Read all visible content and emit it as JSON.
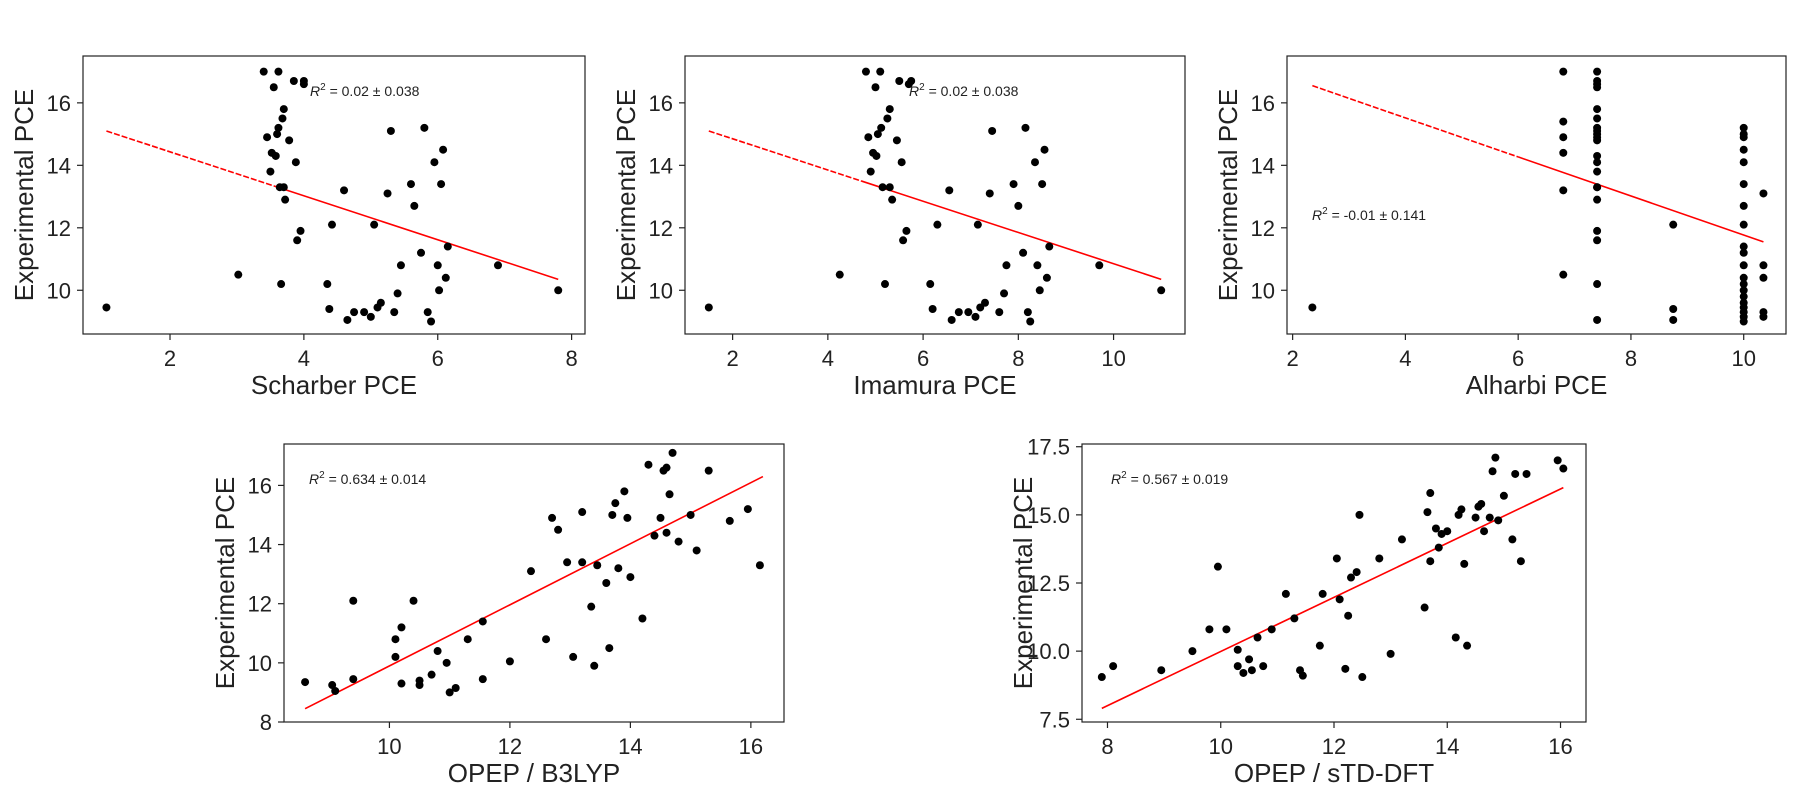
{
  "colors": {
    "points": "#000000",
    "fit": "#ff0000",
    "axes": "#222222"
  },
  "chart_data": [
    {
      "type": "scatter",
      "xlabel": "Scharber PCE",
      "ylabel": "Experimental PCE",
      "annotation": {
        "r2_label": "R",
        "r2_sup": "2",
        "r2_value": " = 0.02 ± 0.038"
      },
      "xlim": [
        0.7,
        8.2
      ],
      "ylim": [
        8.6,
        17.5
      ],
      "xticks": [
        2,
        4,
        6,
        8
      ],
      "yticks": [
        10,
        12,
        14,
        16
      ],
      "fit": {
        "x": [
          1.05,
          7.8
        ],
        "y": [
          15.1,
          10.35
        ],
        "dashed_until_x": 3.6
      },
      "x": [
        1.05,
        3.02,
        3.4,
        3.45,
        3.5,
        3.52,
        3.55,
        3.58,
        3.6,
        3.62,
        3.62,
        3.64,
        3.66,
        3.68,
        3.7,
        3.7,
        3.72,
        3.78,
        3.85,
        3.88,
        3.9,
        3.95,
        4.0,
        4.0,
        4.35,
        4.38,
        4.42,
        4.6,
        4.65,
        4.75,
        4.9,
        5.0,
        5.05,
        5.1,
        5.15,
        5.25,
        5.3,
        5.35,
        5.4,
        5.45,
        5.6,
        5.65,
        5.75,
        5.8,
        5.85,
        5.9,
        5.95,
        6.0,
        6.02,
        6.05,
        6.08,
        6.12,
        6.15,
        6.9,
        7.8
      ],
      "y": [
        9.45,
        10.5,
        17.0,
        14.9,
        13.8,
        14.4,
        16.5,
        14.3,
        15.0,
        17.0,
        15.2,
        13.3,
        10.2,
        15.5,
        15.8,
        13.3,
        12.9,
        14.8,
        16.7,
        14.1,
        11.6,
        11.9,
        16.6,
        16.7,
        10.2,
        9.4,
        12.1,
        13.2,
        9.05,
        9.3,
        9.3,
        9.15,
        12.1,
        9.45,
        9.6,
        13.1,
        15.1,
        9.3,
        9.9,
        10.8,
        13.4,
        12.7,
        11.2,
        15.2,
        9.3,
        9.0,
        14.1,
        10.8,
        10.0,
        13.4,
        14.5,
        10.4,
        11.4,
        10.8,
        10.0
      ]
    },
    {
      "type": "scatter",
      "xlabel": "Imamura PCE",
      "ylabel": "Experimental PCE",
      "annotation": {
        "r2_label": "R",
        "r2_sup": "2",
        "r2_value": " = 0.02 ± 0.038"
      },
      "xlim": [
        1.0,
        11.5
      ],
      "ylim": [
        8.6,
        17.5
      ],
      "xticks": [
        2,
        4,
        6,
        8,
        10
      ],
      "yticks": [
        10,
        12,
        14,
        16
      ],
      "fit": {
        "x": [
          1.5,
          11.0
        ],
        "y": [
          15.1,
          10.35
        ],
        "dashed_until_x": 4.7
      },
      "x": [
        1.5,
        4.25,
        4.8,
        4.85,
        4.9,
        4.95,
        5.0,
        5.02,
        5.05,
        5.1,
        5.12,
        5.15,
        5.2,
        5.25,
        5.3,
        5.3,
        5.35,
        5.45,
        5.5,
        5.55,
        5.58,
        5.65,
        5.7,
        5.75,
        6.15,
        6.2,
        6.3,
        6.55,
        6.6,
        6.75,
        6.95,
        7.1,
        7.15,
        7.2,
        7.3,
        7.4,
        7.45,
        7.6,
        7.7,
        7.75,
        7.9,
        8.0,
        8.1,
        8.15,
        8.2,
        8.25,
        8.35,
        8.4,
        8.45,
        8.5,
        8.55,
        8.6,
        8.65,
        9.7,
        11.0
      ],
      "y": [
        9.45,
        10.5,
        17.0,
        14.9,
        13.8,
        14.4,
        16.5,
        14.3,
        15.0,
        17.0,
        15.2,
        13.3,
        10.2,
        15.5,
        15.8,
        13.3,
        12.9,
        14.8,
        16.7,
        14.1,
        11.6,
        11.9,
        16.6,
        16.7,
        10.2,
        9.4,
        12.1,
        13.2,
        9.05,
        9.3,
        9.3,
        9.15,
        12.1,
        9.45,
        9.6,
        13.1,
        15.1,
        9.3,
        9.9,
        10.8,
        13.4,
        12.7,
        11.2,
        15.2,
        9.3,
        9.0,
        14.1,
        10.8,
        10.0,
        13.4,
        14.5,
        10.4,
        11.4,
        10.8,
        10.0
      ]
    },
    {
      "type": "scatter",
      "xlabel": "Alharbi PCE",
      "ylabel": "Experimental PCE",
      "annotation": {
        "r2_label": "R",
        "r2_sup": "2",
        "r2_value": " = -0.01 ± 0.141"
      },
      "xlim": [
        1.9,
        10.75
      ],
      "ylim": [
        8.6,
        17.5
      ],
      "xticks": [
        2,
        4,
        6,
        8,
        10
      ],
      "yticks": [
        10,
        12,
        14,
        16
      ],
      "fit": {
        "x": [
          2.35,
          10.35
        ],
        "y": [
          16.55,
          11.55
        ],
        "dashed_until_x": 6.0
      },
      "x": [
        2.35,
        6.8,
        6.8,
        6.8,
        6.8,
        6.8,
        6.8,
        7.4,
        7.4,
        7.4,
        7.4,
        7.4,
        7.4,
        7.4,
        7.4,
        7.4,
        7.4,
        7.4,
        7.4,
        7.4,
        7.4,
        7.4,
        7.4,
        7.4,
        7.4,
        7.4,
        7.4,
        7.4,
        8.75,
        8.75,
        8.75,
        10.0,
        10.0,
        10.0,
        10.0,
        10.0,
        10.0,
        10.0,
        10.0,
        10.0,
        10.0,
        10.0,
        10.0,
        10.0,
        10.0,
        10.0,
        10.0,
        10.0,
        10.0,
        10.0,
        10.0,
        10.35,
        10.35,
        10.35,
        10.35,
        10.35
      ],
      "y": [
        9.45,
        17.0,
        15.4,
        14.9,
        14.4,
        13.2,
        10.5,
        17.0,
        16.7,
        16.5,
        15.8,
        15.5,
        15.2,
        15.0,
        14.8,
        14.3,
        14.1,
        13.8,
        13.3,
        13.3,
        12.9,
        11.9,
        11.6,
        10.2,
        9.05,
        16.6,
        15.1,
        14.9,
        12.1,
        9.4,
        9.05,
        15.2,
        15.0,
        14.9,
        14.5,
        14.1,
        13.4,
        12.7,
        12.1,
        11.4,
        11.2,
        10.8,
        10.4,
        10.2,
        10.0,
        9.8,
        9.6,
        9.45,
        9.3,
        9.15,
        9.0,
        13.1,
        10.8,
        10.4,
        9.3,
        9.15
      ]
    },
    {
      "type": "scatter",
      "xlabel": "OPEP / B3LYP",
      "ylabel": "Experimental PCE",
      "annotation": {
        "r2_label": "R",
        "r2_sup": "2",
        "r2_value": " = 0.634 ± 0.014"
      },
      "xlim": [
        8.25,
        16.55
      ],
      "ylim": [
        8.0,
        17.4
      ],
      "xticks": [
        10,
        12,
        14,
        16
      ],
      "yticks": [
        8,
        10,
        12,
        14,
        16
      ],
      "fit": {
        "x": [
          8.6,
          16.2
        ],
        "y": [
          8.45,
          16.3
        ],
        "dashed_until_x": 8.6
      },
      "x": [
        8.6,
        9.05,
        9.1,
        9.4,
        9.4,
        10.1,
        10.1,
        10.2,
        10.2,
        10.4,
        10.5,
        10.5,
        10.7,
        10.8,
        10.95,
        11.0,
        11.1,
        11.3,
        11.55,
        11.55,
        12.0,
        12.35,
        12.6,
        12.7,
        12.8,
        12.95,
        13.05,
        13.2,
        13.2,
        13.35,
        13.4,
        13.45,
        13.6,
        13.65,
        13.7,
        13.75,
        13.8,
        13.9,
        13.95,
        14.0,
        14.2,
        14.3,
        14.4,
        14.5,
        14.55,
        14.6,
        14.6,
        14.65,
        14.7,
        14.8,
        15.0,
        15.1,
        15.3,
        15.65,
        15.95,
        16.15
      ],
      "y": [
        9.35,
        9.25,
        9.05,
        12.1,
        9.45,
        10.8,
        10.2,
        11.2,
        9.3,
        12.1,
        9.25,
        9.4,
        9.6,
        10.4,
        10.0,
        9.0,
        9.15,
        10.8,
        11.4,
        9.45,
        10.05,
        13.1,
        10.8,
        14.9,
        14.5,
        13.4,
        10.2,
        15.1,
        13.4,
        11.9,
        9.9,
        13.3,
        12.7,
        10.5,
        15.0,
        15.4,
        13.2,
        15.8,
        14.9,
        12.9,
        11.5,
        16.7,
        14.3,
        14.9,
        16.5,
        16.6,
        14.4,
        15.7,
        17.1,
        14.1,
        15.0,
        13.8,
        16.5,
        14.8,
        15.2,
        13.3
      ]
    },
    {
      "type": "scatter",
      "xlabel": "OPEP / sTD-DFT",
      "ylabel": "Experimental PCE",
      "annotation": {
        "r2_label": "R",
        "r2_sup": "2",
        "r2_value": " = 0.567 ± 0.019"
      },
      "xlim": [
        7.55,
        16.45
      ],
      "ylim": [
        7.4,
        17.6
      ],
      "xticks": [
        8,
        10,
        12,
        14,
        16
      ],
      "yticks": [
        7.5,
        10.0,
        12.5,
        15.0,
        17.5
      ],
      "yticklabels": [
        "7.5",
        "10.0",
        "12.5",
        "15.0",
        "17.5"
      ],
      "fit": {
        "x": [
          7.9,
          16.05
        ],
        "y": [
          7.9,
          16.0
        ],
        "dashed_until_x": 7.9
      },
      "x": [
        7.9,
        8.1,
        8.95,
        9.5,
        9.8,
        9.95,
        10.1,
        10.3,
        10.3,
        10.4,
        10.5,
        10.55,
        10.65,
        10.75,
        10.9,
        11.15,
        11.3,
        11.4,
        11.45,
        11.75,
        11.8,
        12.05,
        12.1,
        12.2,
        12.25,
        12.3,
        12.4,
        12.45,
        12.5,
        12.8,
        13.0,
        13.2,
        13.6,
        13.65,
        13.7,
        13.7,
        13.8,
        13.85,
        13.9,
        14.0,
        14.15,
        14.2,
        14.25,
        14.3,
        14.35,
        14.5,
        14.55,
        14.6,
        14.65,
        14.75,
        14.8,
        14.85,
        14.9,
        15.0,
        15.15,
        15.2,
        15.3,
        15.4,
        15.95,
        16.05
      ],
      "y": [
        9.05,
        9.45,
        9.3,
        10.0,
        10.8,
        13.1,
        10.8,
        10.05,
        9.45,
        9.2,
        9.7,
        9.3,
        10.5,
        9.45,
        10.8,
        12.1,
        11.2,
        9.3,
        9.1,
        10.2,
        12.1,
        13.4,
        11.9,
        9.35,
        11.3,
        12.7,
        12.9,
        15.0,
        9.05,
        13.4,
        9.9,
        14.1,
        11.6,
        15.1,
        13.3,
        15.8,
        14.5,
        13.8,
        14.3,
        14.4,
        10.5,
        15.0,
        15.2,
        13.2,
        10.2,
        14.9,
        15.3,
        15.4,
        14.4,
        14.9,
        16.6,
        17.1,
        14.8,
        15.7,
        14.1,
        16.5,
        13.3,
        16.5,
        17.0,
        16.7
      ]
    }
  ]
}
